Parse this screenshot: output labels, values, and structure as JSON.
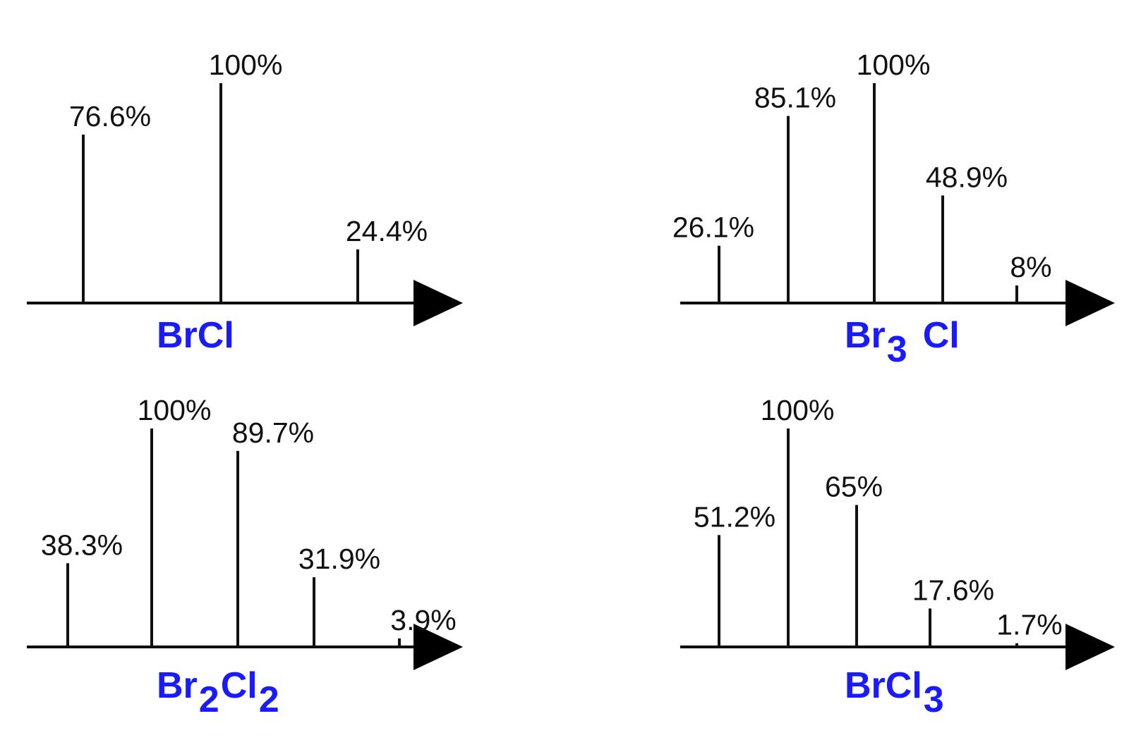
{
  "colors": {
    "formula": "#1a1aff",
    "lines": "#111111",
    "axis": "#000000"
  },
  "chart_data": [
    {
      "type": "bar",
      "formula": [
        {
          "text": "BrCl",
          "sub": false
        }
      ],
      "values": [
        76.6,
        100,
        24.4
      ],
      "labels": [
        "76.6%",
        "100%",
        "24.4%"
      ],
      "ylim": [
        0,
        100
      ]
    },
    {
      "type": "bar",
      "formula": [
        {
          "text": "Br",
          "sub": false
        },
        {
          "text": "3",
          "sub": true
        },
        {
          "text": "Cl",
          "sub": false
        }
      ],
      "values": [
        26.1,
        85.1,
        100,
        48.9,
        8
      ],
      "labels": [
        "26.1%",
        "85.1%",
        "100%",
        "48.9%",
        "8%"
      ],
      "ylim": [
        0,
        100
      ]
    },
    {
      "type": "bar",
      "formula": [
        {
          "text": "Br",
          "sub": false
        },
        {
          "text": "2",
          "sub": true
        },
        {
          "text": "Cl",
          "sub": false
        },
        {
          "text": "2",
          "sub": true
        }
      ],
      "values": [
        38.3,
        100,
        89.7,
        31.9,
        3.9
      ],
      "labels": [
        "38.3%",
        "100%",
        "89.7%",
        "31.9%",
        "3.9%"
      ],
      "ylim": [
        0,
        100
      ]
    },
    {
      "type": "bar",
      "formula": [
        {
          "text": "BrCl",
          "sub": false
        },
        {
          "text": "3",
          "sub": true
        }
      ],
      "values": [
        51.2,
        100,
        65,
        17.6,
        1.7
      ],
      "labels": [
        "51.2%",
        "100%",
        "65%",
        "17.6%",
        "1.7%"
      ],
      "ylim": [
        0,
        100
      ]
    }
  ]
}
